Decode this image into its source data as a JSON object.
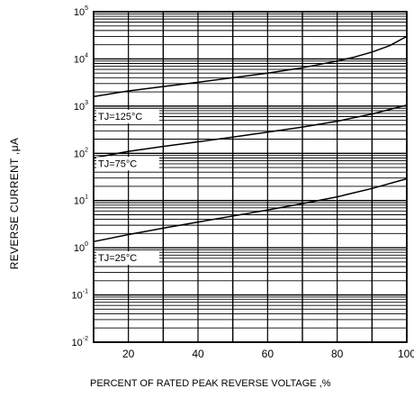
{
  "chart_data": {
    "type": "line",
    "xlabel": "PERCENT OF RATED PEAK REVERSE VOLTAGE ,%",
    "ylabel": "REVERSE CURRENT ,μA",
    "xlim": [
      10,
      100
    ],
    "ylim": [
      0.01,
      100000
    ],
    "y_scale": "log",
    "grid": true,
    "x_ticks": [
      "20",
      "40",
      "60",
      "80",
      "100"
    ],
    "x_tick_values": [
      20,
      40,
      60,
      80,
      100
    ],
    "y_ticks": [
      {
        "value": 100000,
        "base": "10",
        "exp": "5"
      },
      {
        "value": 10000,
        "base": "10",
        "exp": "4"
      },
      {
        "value": 1000,
        "base": "10",
        "exp": "3"
      },
      {
        "value": 100,
        "base": "10",
        "exp": "2"
      },
      {
        "value": 10,
        "base": "10",
        "exp": "1"
      },
      {
        "value": 1,
        "base": "10",
        "exp": "0"
      },
      {
        "value": 0.1,
        "base": "10",
        "exp": "-1"
      },
      {
        "value": 0.01,
        "base": "10",
        "exp": "-2"
      }
    ],
    "series": [
      {
        "name": "TJ=125°C",
        "x": [
          10,
          20,
          30,
          40,
          50,
          60,
          70,
          80,
          85,
          90,
          95,
          100
        ],
        "y": [
          1600,
          2100,
          2600,
          3200,
          4000,
          5000,
          6500,
          9000,
          11000,
          14000,
          19000,
          30000
        ],
        "label_at": [
          10,
          1000
        ]
      },
      {
        "name": "TJ=75°C",
        "x": [
          10,
          20,
          30,
          40,
          50,
          60,
          70,
          80,
          90,
          100
        ],
        "y": [
          80,
          110,
          140,
          175,
          220,
          280,
          360,
          480,
          680,
          1050
        ],
        "label_at": [
          10,
          100
        ]
      },
      {
        "name": "TJ=25°C",
        "x": [
          10,
          20,
          30,
          40,
          50,
          60,
          70,
          80,
          90,
          100
        ],
        "y": [
          1.35,
          1.9,
          2.6,
          3.5,
          4.7,
          6.3,
          8.6,
          12,
          18,
          29
        ],
        "label_at": [
          10,
          1
        ]
      }
    ]
  }
}
